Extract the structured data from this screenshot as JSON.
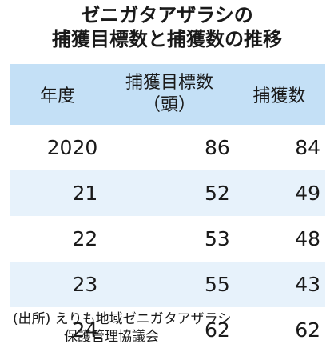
{
  "title": {
    "line1": "ゼニガタアザラシの",
    "line2": "捕獲目標数と捕獲数の推移"
  },
  "chart_data": {
    "type": "table",
    "columns": [
      "年度",
      "捕獲目標数",
      "捕獲数"
    ],
    "column_sub": [
      "",
      "（頭）",
      ""
    ],
    "rows": [
      [
        "2020",
        "86",
        "84"
      ],
      [
        "21",
        "52",
        "49"
      ],
      [
        "22",
        "53",
        "48"
      ],
      [
        "23",
        "55",
        "43"
      ],
      [
        "24",
        "62",
        "62"
      ]
    ],
    "colors": {
      "header": "#c4e0f6",
      "stripe": "#e7f2fb",
      "row": "#ffffff"
    }
  },
  "source": {
    "line1": "(出所) えりも地域ゼニガタアザラシ",
    "line2": "保護管理協議会"
  }
}
